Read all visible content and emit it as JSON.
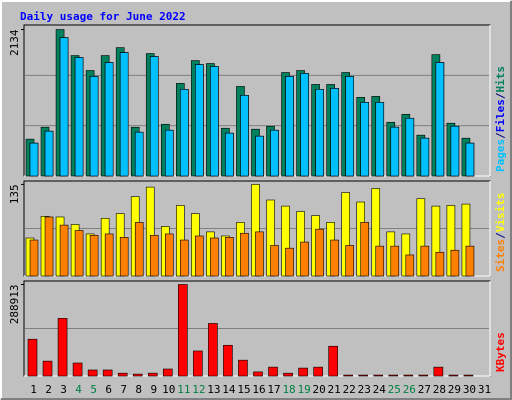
{
  "chart_data": [
    {
      "type": "bar",
      "title": "Daily usage for June 2022",
      "categories": [
        "1",
        "2",
        "3",
        "4",
        "5",
        "6",
        "7",
        "8",
        "9",
        "10",
        "11",
        "12",
        "13",
        "14",
        "15",
        "16",
        "17",
        "18",
        "19",
        "20",
        "21",
        "22",
        "23",
        "24",
        "25",
        "26",
        "27",
        "28",
        "29",
        "30",
        "31"
      ],
      "category_colors": [
        "#000000",
        "#000000",
        "#000000",
        "#008040",
        "#008040",
        "#000000",
        "#000000",
        "#000000",
        "#000000",
        "#000000",
        "#008040",
        "#008040",
        "#000000",
        "#000000",
        "#000000",
        "#000000",
        "#000000",
        "#008040",
        "#008040",
        "#000000",
        "#000000",
        "#000000",
        "#000000",
        "#000000",
        "#008040",
        "#008040",
        "#000000",
        "#000000",
        "#000000",
        "#000000",
        "#000000"
      ],
      "legend_separator": "/",
      "ylim": [
        0,
        2200
      ],
      "yticks": [
        2134
      ],
      "series": [
        {
          "name": "Hits",
          "color": "#00805c",
          "values": [
            537,
            711,
            2134,
            1755,
            1537,
            1755,
            1871,
            711,
            1784,
            754,
            1349,
            1682,
            1639,
            696,
            1305,
            682,
            725,
            1508,
            1537,
            1334,
            1334,
            1508,
            1146,
            1160,
            783,
            899,
            595,
            1769,
            769,
            551,
            0
          ]
        },
        {
          "name": "Files",
          "color": "#0000ff",
          "values": [
            479,
            653,
            2016,
            1726,
            1450,
            1653,
            1798,
            638,
            1740,
            667,
            1262,
            1624,
            1595,
            624,
            1175,
            580,
            667,
            1450,
            1494,
            1262,
            1276,
            1450,
            1073,
            1073,
            711,
            841,
            551,
            1653,
            725,
            479,
            0
          ]
        },
        {
          "name": "Pages",
          "color": "#00c0ff",
          "values": [
            479,
            653,
            2016,
            1726,
            1450,
            1653,
            1798,
            638,
            1740,
            667,
            1262,
            1624,
            1595,
            624,
            1175,
            580,
            667,
            1450,
            1494,
            1262,
            1276,
            1450,
            1073,
            1073,
            711,
            841,
            551,
            1653,
            725,
            479,
            0
          ]
        }
      ]
    },
    {
      "type": "bar",
      "ylim": [
        0,
        140
      ],
      "yticks": [
        135
      ],
      "series": [
        {
          "name": "Visits",
          "color": "#ffff00",
          "values": [
            56,
            88,
            87,
            76,
            62,
            85,
            92,
            117,
            131,
            73,
            104,
            92,
            65,
            59,
            79,
            135,
            112,
            103,
            95,
            89,
            79,
            123,
            109,
            129,
            65,
            62,
            114,
            103,
            104,
            106,
            0
          ]
        },
        {
          "name": "Sites",
          "color": "#ff8000",
          "values": [
            53,
            87,
            75,
            67,
            60,
            62,
            57,
            79,
            60,
            62,
            53,
            59,
            56,
            57,
            63,
            65,
            45,
            41,
            50,
            69,
            53,
            45,
            79,
            44,
            44,
            31,
            44,
            35,
            38,
            44,
            0
          ]
        }
      ]
    },
    {
      "type": "bar",
      "ylim": [
        0,
        300000
      ],
      "yticks": [
        288913
      ],
      "series": [
        {
          "name": "KBytes",
          "color": "#ff0000",
          "values": [
            116193,
            47000,
            182000,
            41000,
            19000,
            19000,
            9000,
            6000,
            9000,
            22000,
            288913,
            79000,
            166000,
            97000,
            50000,
            13000,
            28000,
            9000,
            25000,
            28000,
            94000,
            3000,
            3000,
            3000,
            3000,
            3000,
            3000,
            28000,
            3000,
            3000,
            0
          ]
        }
      ]
    }
  ]
}
